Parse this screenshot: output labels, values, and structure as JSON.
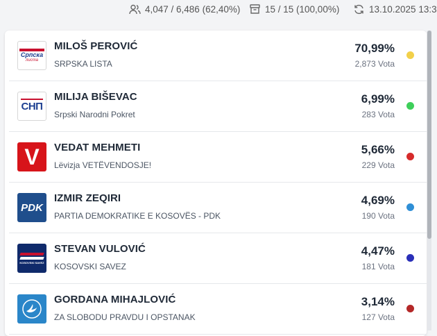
{
  "stats": {
    "voters": "4,047 / 6,486 (62,40%)",
    "stations": "15 / 15 (100,00%)",
    "updated": "13.10.2025 13:3"
  },
  "candidates": [
    {
      "name": "MILOŠ PEROVIĆ",
      "party": "SRPSKA LISTA",
      "percent": "70,99%",
      "votes": "2,873 Vota",
      "dot_color": "#f2d04a",
      "logo_text": "Српска",
      "logo_sub": "листа"
    },
    {
      "name": "MILIJA BIŠEVAC",
      "party": "Srpski Narodni Pokret",
      "percent": "6,99%",
      "votes": "283 Vota",
      "dot_color": "#3ecf5a",
      "logo_text": "СНП"
    },
    {
      "name": "VEDAT MEHMETI",
      "party": "Lëvizja VETËVENDOSJE!",
      "percent": "5,66%",
      "votes": "229 Vota",
      "dot_color": "#d62b2b",
      "logo_text": "V"
    },
    {
      "name": "IZMIR ZEQIRI",
      "party": "PARTIA DEMOKRATIKE E KOSOVËS - PDK",
      "percent": "4,69%",
      "votes": "190 Vota",
      "dot_color": "#2f8fd6",
      "logo_text": "PDK"
    },
    {
      "name": "STEVAN VULOVIĆ",
      "party": "KOSOVSKI SAVEZ",
      "percent": "4,47%",
      "votes": "181 Vota",
      "dot_color": "#2a2fb8",
      "logo_text": "KOSOVSKI SAVEZ"
    },
    {
      "name": "GORDANA MIHAJLOVIĆ",
      "party": "ZA SLOBODU PRAVDU I OPSTANAK",
      "percent": "3,14%",
      "votes": "127 Vota",
      "dot_color": "#b42828",
      "logo_text": ""
    }
  ]
}
